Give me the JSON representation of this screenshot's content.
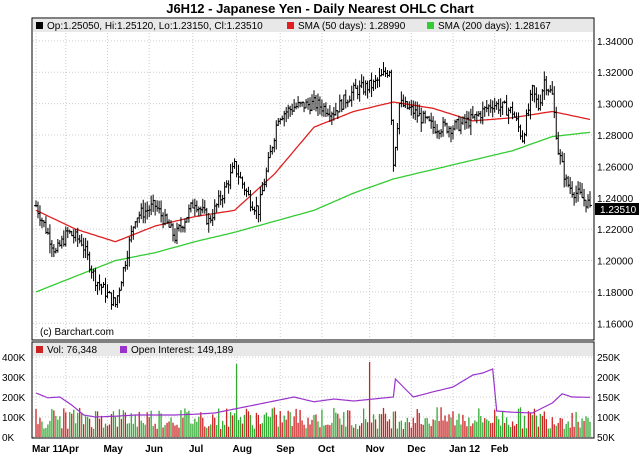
{
  "title": "J6H12 - Japanese Yen - Daily Nearest OHLC Chart",
  "legend": {
    "ohlc": "Op:1.25050, Hi:1.25120, Lo:1.23150, Cl:1.23510",
    "sma50": "SMA (50 days): 1.28990",
    "sma200": "SMA (200 days): 1.28167",
    "vol": "Vol: 76,348",
    "oi": "Open Interest: 149,189"
  },
  "copyright": "(c) Barchart.com",
  "last_price_label": "1.23510",
  "colors": {
    "price_bars": "#000000",
    "sma50": "#e02020",
    "sma200": "#33cc33",
    "volume_up": "#33aa33",
    "volume_down": "#cc2222",
    "open_interest": "#9933cc",
    "grid": "#cccccc",
    "panel_border": "#000000",
    "legend_bg": "#e8e8e8"
  },
  "chart_data": [
    {
      "type": "ohlc",
      "title": "J6H12 - Japanese Yen - Daily Nearest OHLC Chart",
      "ylim": [
        1.15,
        1.345
      ],
      "y_ticks": [
        "1.16000",
        "1.18000",
        "1.20000",
        "1.22000",
        "1.24000",
        "1.26000",
        "1.28000",
        "1.30000",
        "1.32000",
        "1.34000"
      ],
      "y_tick_values": [
        1.16,
        1.18,
        1.2,
        1.22,
        1.24,
        1.26,
        1.28,
        1.3,
        1.32,
        1.34
      ],
      "x_ticks": [
        "Mar 11",
        "Apr",
        "May",
        "Jun",
        "Jul",
        "Aug",
        "Sep",
        "Oct",
        "Nov",
        "Dec",
        "Jan 12",
        "Feb"
      ],
      "grid": true,
      "close_anchors": {
        "day_index": [
          0,
          10,
          16,
          23,
          30,
          40,
          50,
          60,
          70,
          80,
          87,
          95,
          100,
          108,
          112,
          117,
          122,
          130,
          140,
          150,
          160,
          170,
          178,
          180,
          183,
          186,
          190,
          195,
          200,
          210,
          220,
          230,
          240,
          245,
          250,
          253,
          256,
          260,
          263,
          267,
          270,
          275,
          279
        ],
        "close": [
          1.235,
          1.205,
          1.218,
          1.212,
          1.188,
          1.172,
          1.228,
          1.235,
          1.215,
          1.238,
          1.225,
          1.245,
          1.26,
          1.238,
          1.232,
          1.262,
          1.292,
          1.298,
          1.3,
          1.295,
          1.308,
          1.312,
          1.322,
          1.262,
          1.3,
          1.298,
          1.295,
          1.29,
          1.285,
          1.285,
          1.29,
          1.3,
          1.295,
          1.278,
          1.308,
          1.298,
          1.315,
          1.305,
          1.27,
          1.25,
          1.245,
          1.24,
          1.2351
        ]
      },
      "series": [
        {
          "name": "SMA (50 days)",
          "anchors_x": [
            0,
            20,
            40,
            60,
            80,
            100,
            120,
            140,
            160,
            180,
            200,
            220,
            240,
            260,
            279
          ],
          "values": [
            1.232,
            1.22,
            1.212,
            1.222,
            1.228,
            1.232,
            1.255,
            1.285,
            1.295,
            1.301,
            1.297,
            1.289,
            1.291,
            1.295,
            1.2899
          ]
        },
        {
          "name": "SMA (200 days)",
          "anchors_x": [
            0,
            20,
            40,
            60,
            80,
            100,
            120,
            140,
            160,
            180,
            200,
            220,
            240,
            260,
            279
          ],
          "values": [
            1.18,
            1.19,
            1.2,
            1.205,
            1.212,
            1.218,
            1.225,
            1.232,
            1.243,
            1.252,
            1.258,
            1.264,
            1.27,
            1.279,
            1.2817
          ]
        }
      ]
    },
    {
      "type": "bar",
      "title": "",
      "ylabel_left": "",
      "left_ticks": [
        "0K",
        "100K",
        "200K",
        "300K",
        "400K"
      ],
      "right_ticks": [
        "50K",
        "100K",
        "150K",
        "200K",
        "250K"
      ],
      "ylim_left": [
        0,
        400000
      ],
      "ylim_right": [
        50000,
        250000
      ],
      "series": [
        {
          "name": "Vol: 76,348",
          "last": 76348
        },
        {
          "name": "Open Interest: 149,189",
          "last": 149189,
          "anchors_x": [
            0,
            6,
            12,
            18,
            24,
            30,
            40,
            50,
            60,
            70,
            80,
            90,
            100,
            110,
            120,
            130,
            140,
            150,
            160,
            170,
            180,
            181,
            190,
            200,
            210,
            220,
            225,
            230,
            232,
            240,
            250,
            260,
            265,
            270,
            279
          ],
          "values": [
            160000,
            148000,
            150000,
            130000,
            105000,
            100000,
            102000,
            105000,
            105000,
            105000,
            107000,
            110000,
            120000,
            130000,
            140000,
            150000,
            138000,
            145000,
            140000,
            145000,
            150000,
            195000,
            150000,
            163000,
            175000,
            205000,
            210000,
            220000,
            115000,
            112000,
            110000,
            135000,
            158000,
            150000,
            149189
          ]
        }
      ]
    }
  ]
}
